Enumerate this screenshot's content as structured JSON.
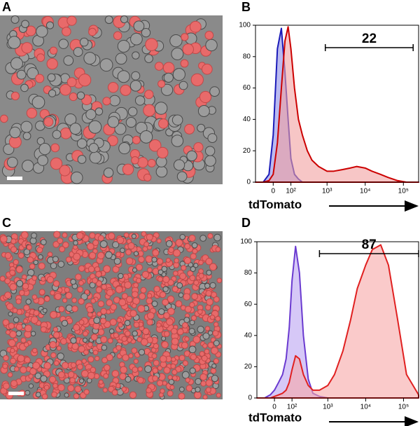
{
  "panel_labels": {
    "A": "A",
    "C": "C"
  },
  "chart_data": [
    {
      "type": "histogram",
      "panel_label": "B",
      "x_label": "tdTomato",
      "xscale": "biexponential",
      "xlim": [
        -100,
        250000
      ],
      "ylim": [
        0,
        100
      ],
      "yticks": [
        0,
        20,
        40,
        60,
        80,
        100
      ],
      "xticks": [
        {
          "value": 0,
          "label": "0"
        },
        {
          "value": 100,
          "label": "10²"
        },
        {
          "value": 1000,
          "label": "10³"
        },
        {
          "value": 10000,
          "label": "10⁴"
        },
        {
          "value": 100000,
          "label": "10⁵"
        }
      ],
      "x": [
        -100,
        -50,
        -20,
        0,
        20,
        40,
        60,
        80,
        100,
        130,
        170,
        220,
        300,
        400,
        600,
        1000,
        1500,
        2500,
        4000,
        6000,
        10000,
        15000,
        25000,
        40000,
        70000,
        120000,
        250000
      ],
      "series": [
        {
          "color": "#1a1ab8",
          "fill": "#8c8ce6",
          "values": [
            0,
            0,
            5,
            30,
            85,
            98,
            70,
            40,
            15,
            5,
            2,
            0,
            0,
            0,
            0,
            0,
            0,
            0,
            0,
            0,
            0,
            0,
            0,
            0,
            0,
            0,
            0
          ]
        },
        {
          "color": "#cc0000",
          "fill": "#f2a0a0",
          "values": [
            0,
            0,
            1,
            5,
            25,
            60,
            90,
            99,
            85,
            60,
            40,
            30,
            20,
            14,
            10,
            7,
            7,
            8,
            9,
            10,
            9,
            7,
            5,
            3,
            1,
            0,
            0
          ]
        }
      ],
      "gate": {
        "from": 900,
        "to": 180000,
        "value": 22
      }
    },
    {
      "type": "histogram",
      "panel_label": "D",
      "x_label": "tdTomato",
      "xscale": "biexponential",
      "xlim": [
        -100,
        250000
      ],
      "ylim": [
        0,
        100
      ],
      "yticks": [
        0,
        20,
        40,
        60,
        80,
        100
      ],
      "xticks": [
        {
          "value": 0,
          "label": "0"
        },
        {
          "value": 100,
          "label": "10²"
        },
        {
          "value": 1000,
          "label": "10³"
        },
        {
          "value": 10000,
          "label": "10⁴"
        },
        {
          "value": 100000,
          "label": "10⁵"
        }
      ],
      "x": [
        -100,
        -50,
        -20,
        0,
        20,
        40,
        60,
        80,
        100,
        130,
        170,
        220,
        300,
        400,
        600,
        1000,
        1500,
        2500,
        4000,
        6000,
        10000,
        15000,
        25000,
        40000,
        70000,
        120000,
        250000
      ],
      "series": [
        {
          "color": "#6a3ad0",
          "fill": "#bba4f2",
          "values": [
            0,
            0,
            2,
            5,
            10,
            15,
            25,
            45,
            75,
            97,
            80,
            40,
            12,
            3,
            1,
            0,
            0,
            0,
            0,
            0,
            0,
            0,
            0,
            0,
            0,
            0,
            0
          ]
        },
        {
          "color": "#e02020",
          "fill": "#f6a6a6",
          "values": [
            0,
            0,
            0,
            1,
            2,
            3,
            5,
            10,
            18,
            27,
            25,
            15,
            8,
            5,
            5,
            8,
            15,
            30,
            50,
            70,
            85,
            95,
            98,
            85,
            50,
            15,
            2
          ]
        }
      ],
      "gate": {
        "from": 600,
        "to": 250000,
        "value": 87
      }
    }
  ]
}
